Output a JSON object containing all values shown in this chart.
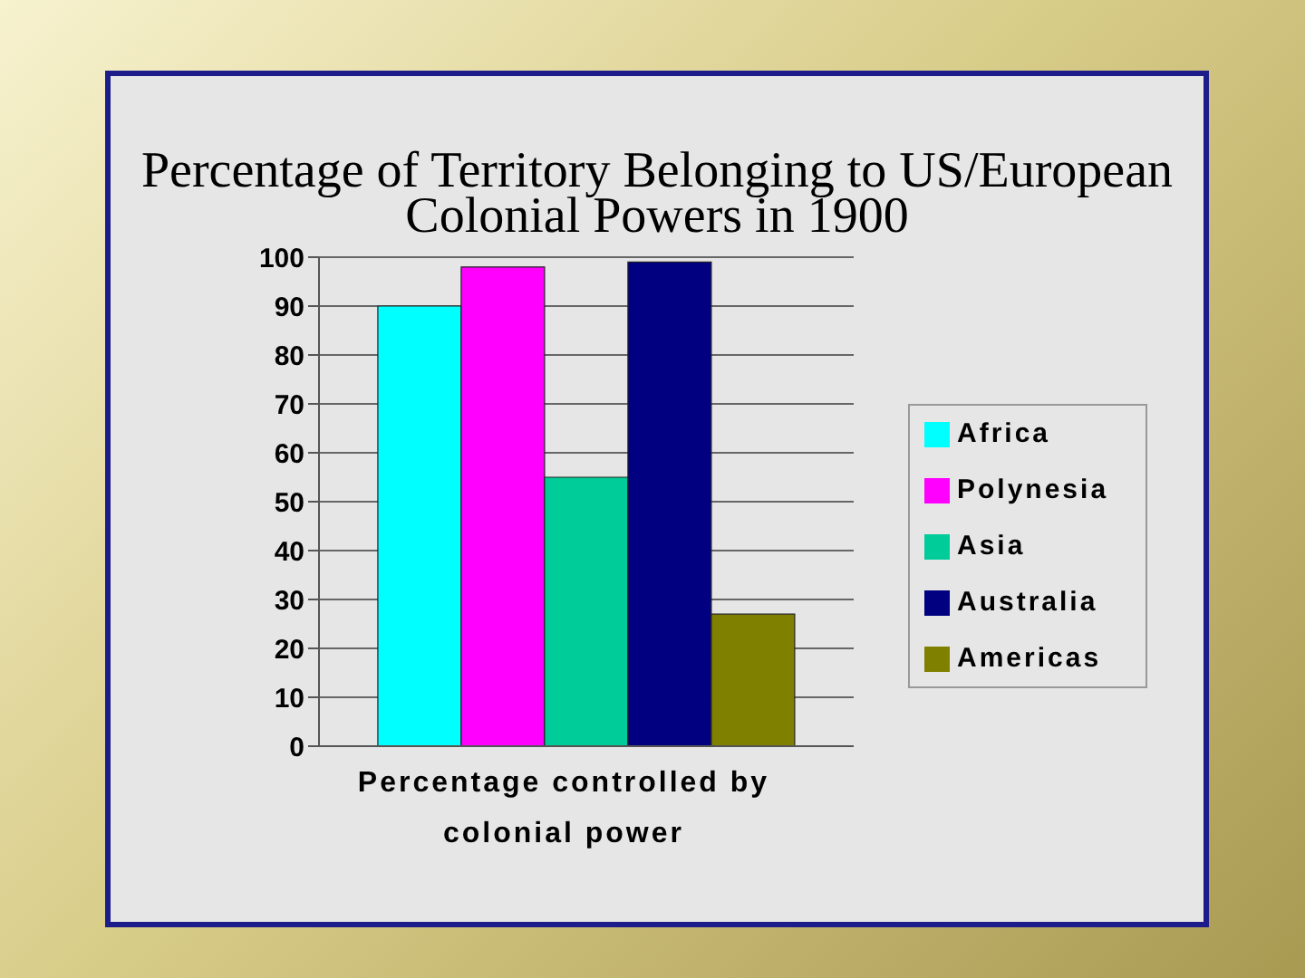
{
  "chart_data": {
    "type": "bar",
    "title": "Percentage of Territory Belonging to US/European Colonial Powers in 1900",
    "xlabel": "Percentage controlled by colonial power",
    "categories": [
      null
    ],
    "series": [
      {
        "name": "Africa",
        "color": "#00ffff",
        "values": [
          90
        ]
      },
      {
        "name": "Polynesia",
        "color": "#ff00ff",
        "values": [
          98
        ]
      },
      {
        "name": "Asia",
        "color": "#00cc99",
        "values": [
          55
        ]
      },
      {
        "name": "Australia",
        "color": "#000080",
        "values": [
          99
        ]
      },
      {
        "name": "Americas",
        "color": "#808000",
        "values": [
          27
        ]
      }
    ],
    "ylim": [
      0,
      100
    ],
    "yticks": [
      0,
      10,
      20,
      30,
      40,
      50,
      60,
      70,
      80,
      90,
      100
    ],
    "grid": "y",
    "legend": "right"
  }
}
